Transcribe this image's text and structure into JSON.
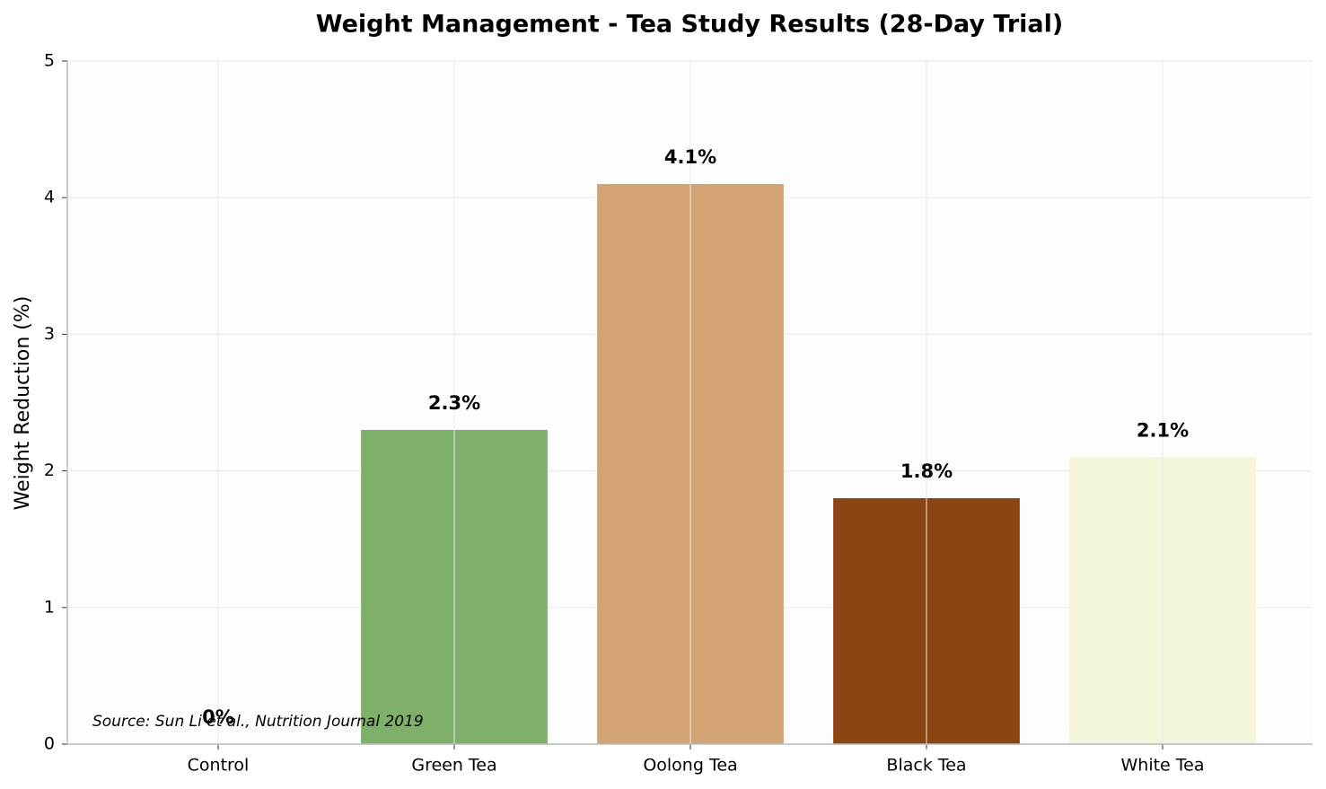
{
  "chart_data": {
    "type": "bar",
    "title": "Weight Management - Tea Study Results (28-Day Trial)",
    "y_label": "Weight Reduction (%)",
    "categories": [
      "Control",
      "Green Tea",
      "Oolong Tea",
      "Black Tea",
      "White Tea"
    ],
    "values": [
      0,
      2.3,
      4.1,
      1.8,
      2.1
    ],
    "value_labels": [
      "0%",
      "2.3%",
      "4.1%",
      "1.8%",
      "2.1%"
    ],
    "colors": [
      "#a0a0a0",
      "#7fb069",
      "#d2a473",
      "#8b4513",
      "#f5f5dc"
    ],
    "ylim": [
      0,
      5
    ],
    "yticks": [
      0,
      1,
      2,
      3,
      4,
      5
    ],
    "grid": true,
    "source": "Source: Sun Li et al., Nutrition Journal 2019"
  }
}
